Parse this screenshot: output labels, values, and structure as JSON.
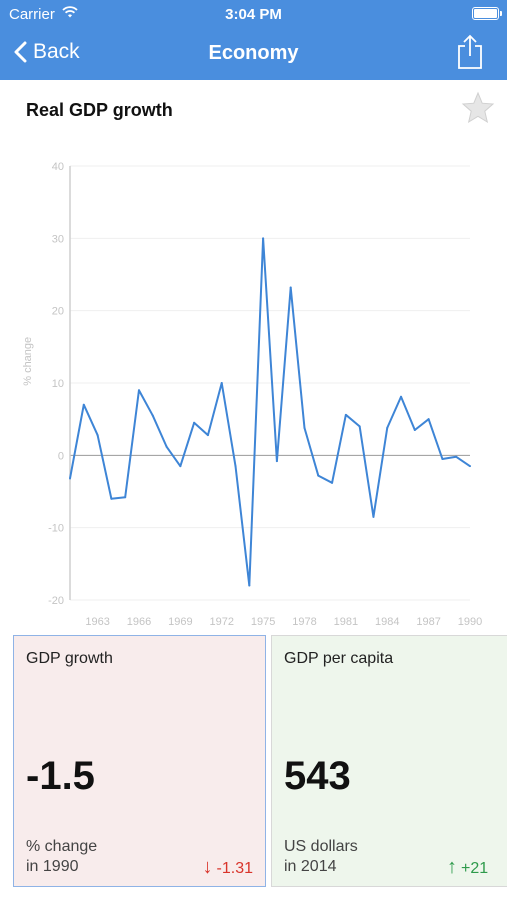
{
  "status": {
    "carrier": "Carrier",
    "time": "3:04 PM",
    "wifi_icon": "wifi-icon",
    "battery_icon": "battery-icon"
  },
  "nav": {
    "back_label": "Back",
    "title": "Economy",
    "share_icon": "share-icon"
  },
  "indicator": {
    "title": "Real GDP growth",
    "favorite_icon": "star-icon"
  },
  "colors": {
    "nav_bar": "#4a8ede",
    "line": "#3e85d6",
    "down": "#d9342b",
    "up": "#2e9a4b",
    "card_left_bg": "#f8ecec",
    "card_right_bg": "#eef6ec"
  },
  "chart_data": {
    "type": "line",
    "title": "",
    "xlabel": "",
    "ylabel": "% change",
    "ylim": [
      -20,
      40
    ],
    "xlim": [
      1961,
      1990
    ],
    "yticks": [
      "40",
      "30",
      "20",
      "10",
      "0",
      "-10",
      "-20"
    ],
    "xticks": [
      "1963",
      "1966",
      "1969",
      "1972",
      "1975",
      "1978",
      "1981",
      "1984",
      "1987",
      "1990"
    ],
    "grid": true,
    "legend": "none",
    "series": [
      {
        "x": [
          1961,
          1962,
          1963,
          1964,
          1965,
          1966,
          1967,
          1968,
          1969,
          1970,
          1971,
          1972,
          1973,
          1974,
          1975,
          1976,
          1977,
          1978,
          1979,
          1980,
          1981,
          1982,
          1983,
          1984,
          1985,
          1986,
          1987,
          1988,
          1989,
          1990
        ],
        "values": [
          -3.2,
          7.0,
          2.8,
          -6.0,
          -5.8,
          9.0,
          5.5,
          1.2,
          -1.5,
          4.5,
          2.8,
          10.0,
          -1.5,
          -18.0,
          30.0,
          -0.8,
          23.2,
          3.8,
          -2.8,
          -3.8,
          5.6,
          4.0,
          -8.5,
          3.8,
          8.1,
          3.5,
          5.0,
          -0.5,
          -0.2,
          -1.5
        ]
      }
    ]
  },
  "cards": [
    {
      "label": "GDP growth",
      "value": "-1.5",
      "unit": "% change",
      "period": "in 1990",
      "change": "-1.31",
      "direction_icon": "arrow-down-icon"
    },
    {
      "label": "GDP per capita",
      "value": "543",
      "unit": "US dollars",
      "period": "in 2014",
      "change": "+21",
      "direction_icon": "arrow-up-icon"
    }
  ]
}
